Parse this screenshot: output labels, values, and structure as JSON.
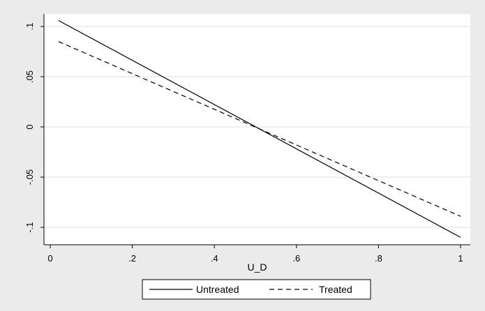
{
  "chart_data": {
    "type": "line",
    "xlabel": "U_D",
    "ylabel": "",
    "xlim": [
      0,
      1
    ],
    "ylim": [
      -0.11,
      0.115
    ],
    "x_ticks": [
      {
        "value": 0,
        "label": "0"
      },
      {
        "value": 0.2,
        "label": ".2"
      },
      {
        "value": 0.4,
        "label": ".4"
      },
      {
        "value": 0.6,
        "label": ".6"
      },
      {
        "value": 0.8,
        "label": ".8"
      },
      {
        "value": 1,
        "label": "1"
      }
    ],
    "y_ticks": [
      {
        "value": 0.1,
        "label": ".1"
      },
      {
        "value": 0.05,
        "label": ".05"
      },
      {
        "value": 0,
        "label": "0"
      },
      {
        "value": -0.05,
        "label": "-.05"
      },
      {
        "value": -0.1,
        "label": "-.1"
      }
    ],
    "grid": "horizontal",
    "legend_position": "bottom",
    "series": [
      {
        "name": "Untreated",
        "style": "solid",
        "color": "#000000",
        "x": [
          0.02,
          1.0
        ],
        "y": [
          0.106,
          -0.11
        ]
      },
      {
        "name": "Treated",
        "style": "dashed",
        "color": "#000000",
        "x": [
          0.02,
          1.0
        ],
        "y": [
          0.085,
          -0.089
        ]
      }
    ]
  }
}
